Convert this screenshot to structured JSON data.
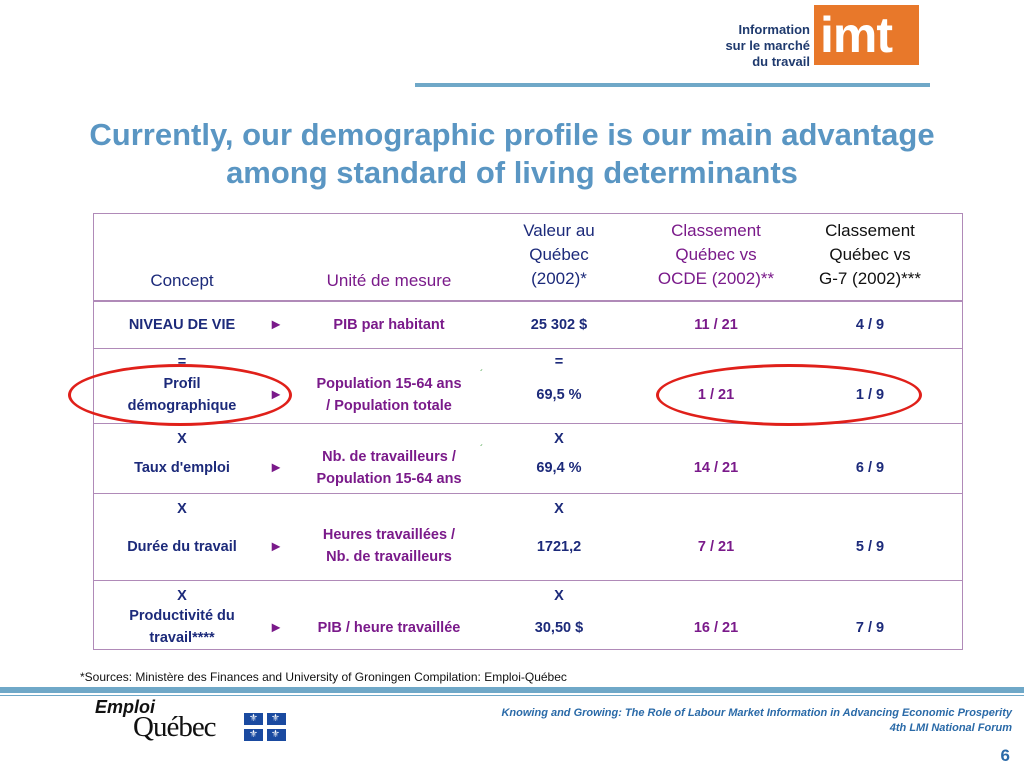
{
  "logo": {
    "text_lines": [
      "Information",
      "sur le marché",
      "du travail"
    ],
    "mark": "imt",
    "brand_color": "#e8782a"
  },
  "title": {
    "line1": "Currently, our demographic profile is our main advantage",
    "line2": "among standard of living determinants",
    "color": "#5a96c3"
  },
  "table": {
    "headers": {
      "concept": "Concept",
      "unit": "Unité de mesure",
      "value": [
        "Valeur au",
        "Québec",
        "(2002)*"
      ],
      "oecd": [
        "Classement",
        "Québec vs",
        "OCDE (2002)**"
      ],
      "g7": [
        "Classement",
        "Québec vs",
        "G-7 (2002)***"
      ]
    },
    "arrow": "►",
    "rows": [
      {
        "concept": [
          "NIVEAU DE VIE"
        ],
        "concept_marker": "",
        "unit": [
          "PIB par habitant"
        ],
        "value_marker": "",
        "value": "25 302 $",
        "oecd": "11 / 21",
        "g7": "4 / 9"
      },
      {
        "concept": [
          "Profil",
          "démographique"
        ],
        "concept_marker": "=",
        "unit": [
          "Population 15-64 ans",
          "/ Population totale"
        ],
        "value_marker": "=",
        "value": "69,5 %",
        "oecd": "1 / 21",
        "g7": "1 / 9"
      },
      {
        "concept": [
          "Taux d'emploi"
        ],
        "concept_marker": "X",
        "unit": [
          "Nb. de travailleurs  /",
          "Population 15-64 ans"
        ],
        "value_marker": "X",
        "value": "69,4 %",
        "oecd": "14 / 21",
        "g7": "6 / 9"
      },
      {
        "concept": [
          "Durée du travail"
        ],
        "concept_marker": "X",
        "unit": [
          "Heures travaillées /",
          "Nb. de travailleurs"
        ],
        "value_marker": "X",
        "value": "1721,2",
        "oecd": "7 / 21",
        "g7": "5 / 9"
      },
      {
        "concept": [
          "Productivité du",
          "travail****"
        ],
        "concept_marker": "X",
        "unit": [
          "PIB / heure travaillée"
        ],
        "value_marker": "X",
        "value": "30,50 $",
        "oecd": "16 / 21",
        "g7": "7 / 9"
      }
    ]
  },
  "footnote": "*Sources: Ministère des Finances and University of Groningen  Compilation: Emploi-Québec",
  "footer": {
    "brand_top": "Emploi",
    "brand_bottom": "Québec",
    "line1": "Knowing and Growing: The Role of Labour Market Information in Advancing Economic Prosperity",
    "line2": "4th LMI National Forum",
    "page": "6"
  }
}
